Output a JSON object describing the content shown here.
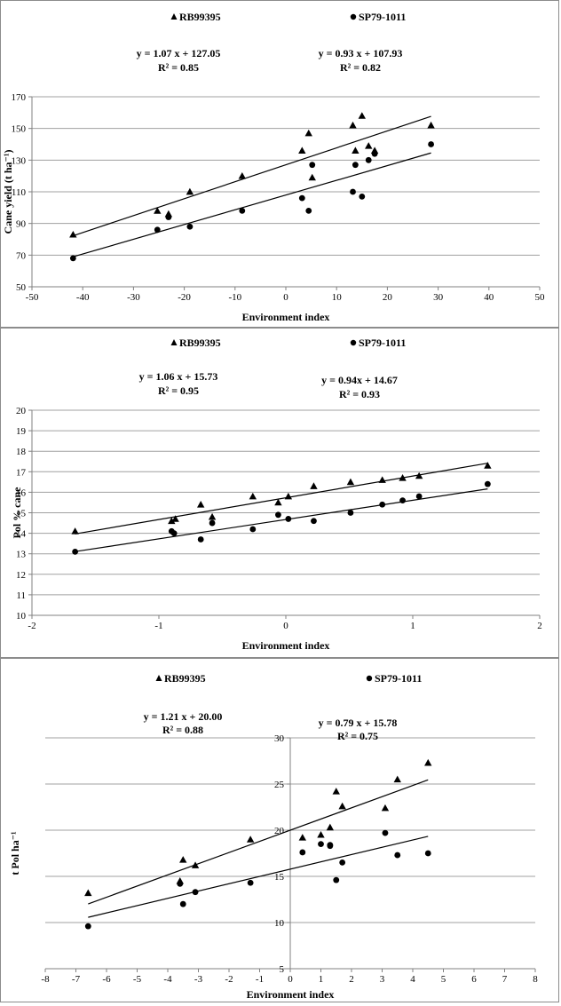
{
  "chart_data": [
    {
      "type": "scatter",
      "xlabel": "Environment index",
      "ylabel": "Cane yield (t ha⁻¹)",
      "xlim": [
        -50,
        50
      ],
      "ylim": [
        50,
        170
      ],
      "xticks": [
        -50,
        -40,
        -30,
        -20,
        -10,
        0,
        10,
        20,
        30,
        40,
        50
      ],
      "yticks": [
        50,
        70,
        90,
        110,
        130,
        150,
        170
      ],
      "grid": "horizontal",
      "series": [
        {
          "name": "RB99395",
          "marker": "triangle",
          "equation": "y = 1.07 x  + 127.05",
          "r2": "R² = 0.85",
          "fit": {
            "slope": 1.07,
            "intercept": 127.05,
            "xrange": [
              -41.9,
              28.6
            ]
          },
          "x": [
            -41.9,
            -25.3,
            -23.1,
            -18.9,
            -8.6,
            3.2,
            4.5,
            5.2,
            13.2,
            13.7,
            15.0,
            16.3,
            17.5,
            28.6
          ],
          "y": [
            83,
            98,
            96,
            110,
            120,
            136,
            147,
            119,
            152,
            136,
            158,
            139,
            136,
            152
          ]
        },
        {
          "name": "SP79-1011",
          "marker": "circle",
          "equation": "y = 0.93 x  + 107.93",
          "r2": "R² = 0.82",
          "fit": {
            "slope": 0.93,
            "intercept": 107.93,
            "xrange": [
              -41.9,
              28.6
            ]
          },
          "x": [
            -41.9,
            -25.3,
            -23.1,
            -18.9,
            -8.6,
            3.2,
            4.5,
            5.2,
            13.2,
            13.7,
            15.0,
            16.3,
            17.5,
            28.6
          ],
          "y": [
            68,
            86,
            94,
            88,
            98,
            106,
            98,
            127,
            110,
            127,
            107,
            130,
            134,
            140
          ]
        }
      ]
    },
    {
      "type": "scatter",
      "xlabel": "Environment index",
      "ylabel": "Pol % cane",
      "xlim": [
        -2,
        2
      ],
      "ylim": [
        10,
        20
      ],
      "xticks": [
        -2,
        -1,
        0,
        1,
        2
      ],
      "yticks": [
        10,
        11,
        12,
        13,
        14,
        15,
        16,
        17,
        18,
        19,
        20
      ],
      "grid": "horizontal",
      "series": [
        {
          "name": "RB99395",
          "marker": "triangle",
          "equation": "y = 1.06 x  + 15.73",
          "r2": "R² = 0.95",
          "fit": {
            "slope": 1.06,
            "intercept": 15.73,
            "xrange": [
              -1.66,
              1.59
            ]
          },
          "x": [
            -1.66,
            -0.9,
            -0.87,
            -0.67,
            -0.58,
            -0.26,
            -0.06,
            0.02,
            0.22,
            0.51,
            0.76,
            0.92,
            1.05,
            1.59
          ],
          "y": [
            14.1,
            14.6,
            14.7,
            15.4,
            14.8,
            15.8,
            15.5,
            15.8,
            16.3,
            16.5,
            16.6,
            16.7,
            16.8,
            17.3
          ]
        },
        {
          "name": "SP79-1011",
          "marker": "circle",
          "equation": "y = 0.94x  + 14.67",
          "r2": "R² = 0.93",
          "fit": {
            "slope": 0.94,
            "intercept": 14.67,
            "xrange": [
              -1.66,
              1.59
            ]
          },
          "x": [
            -1.66,
            -0.9,
            -0.88,
            -0.67,
            -0.58,
            -0.26,
            -0.06,
            0.02,
            0.22,
            0.51,
            0.76,
            0.92,
            1.05,
            1.59
          ],
          "y": [
            13.1,
            14.1,
            14.0,
            13.7,
            14.5,
            14.2,
            14.9,
            14.7,
            14.6,
            15.0,
            15.4,
            15.6,
            15.8,
            16.4
          ]
        }
      ]
    },
    {
      "type": "scatter",
      "xlabel": "Environment index",
      "ylabel": "t Pol ha⁻¹",
      "xlim": [
        -8,
        8
      ],
      "ylim": [
        5,
        30
      ],
      "xticks": [
        -8,
        -7,
        -6,
        -5,
        -4,
        -3,
        -2,
        -1,
        0,
        1,
        2,
        3,
        4,
        5,
        6,
        7,
        8
      ],
      "yticks": [
        5,
        10,
        15,
        20,
        25,
        30
      ],
      "grid": "horizontal",
      "series": [
        {
          "name": "RB99395",
          "marker": "triangle",
          "equation": "y = 1.21 x  + 20.00",
          "r2": "R² = 0.88",
          "fit": {
            "slope": 1.21,
            "intercept": 20.0,
            "xrange": [
              -6.6,
              4.5
            ]
          },
          "x": [
            -6.6,
            -3.6,
            -3.5,
            -3.1,
            -1.3,
            0.4,
            1.0,
            1.3,
            1.5,
            1.7,
            3.1,
            3.5,
            4.5
          ],
          "y": [
            13.2,
            14.5,
            16.8,
            16.2,
            19.0,
            19.2,
            19.5,
            20.3,
            24.2,
            22.6,
            22.4,
            25.5,
            27.3
          ]
        },
        {
          "name": "SP79-1011",
          "marker": "circle",
          "equation": "y = 0.79 x  + 15.78",
          "r2": "R² = 0.75",
          "fit": {
            "slope": 0.79,
            "intercept": 15.78,
            "xrange": [
              -6.6,
              4.5
            ]
          },
          "x": [
            -6.6,
            -3.6,
            -3.5,
            -3.1,
            -1.3,
            0.4,
            1.0,
            1.3,
            1.3,
            1.5,
            1.7,
            3.1,
            3.5,
            4.5
          ],
          "y": [
            9.6,
            14.2,
            12.0,
            13.3,
            14.3,
            17.6,
            18.5,
            18.4,
            18.3,
            14.6,
            16.5,
            19.7,
            17.3,
            17.5
          ]
        }
      ]
    }
  ]
}
